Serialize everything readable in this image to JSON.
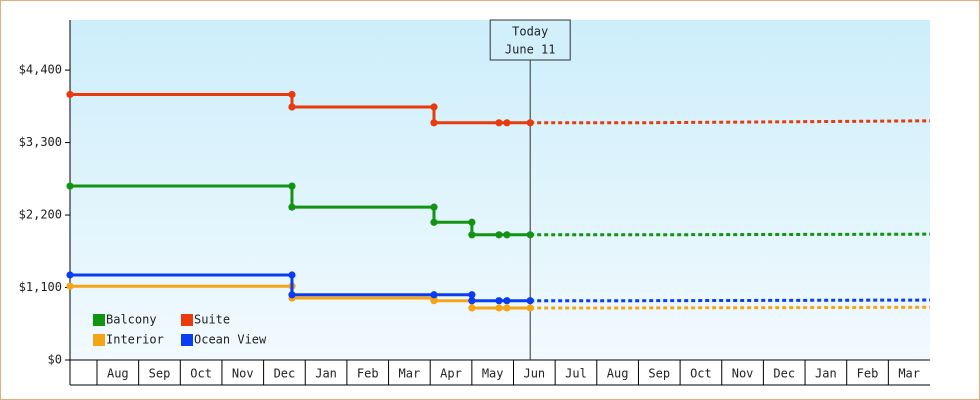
{
  "chart_data": {
    "type": "line",
    "step": true,
    "categories": [
      "Aug",
      "Sep",
      "Oct",
      "Nov",
      "Dec",
      "Jan",
      "Feb",
      "Mar",
      "Apr",
      "May",
      "Jun",
      "Jul",
      "Aug",
      "Sep",
      "Oct",
      "Nov",
      "Dec",
      "Jan",
      "Feb",
      "Mar"
    ],
    "xlim": [
      -0.65,
      20
    ],
    "ylim": [
      0,
      5160
    ],
    "yticks": [
      {
        "value": 0,
        "label": "$0"
      },
      {
        "value": 1100,
        "label": "$1,100"
      },
      {
        "value": 2200,
        "label": "$2,200"
      },
      {
        "value": 3300,
        "label": "$3,300"
      },
      {
        "value": 4400,
        "label": "$4,400"
      }
    ],
    "today_label": "Today",
    "today_date": "June 11",
    "today_x": 10.4,
    "series": [
      {
        "name": "Balcony",
        "color": "#129412",
        "x": [
          -0.65,
          4.68,
          4.68,
          8.09,
          8.09,
          9.0,
          9.0,
          9.65,
          9.84,
          10.4
        ],
        "values": [
          2640,
          2640,
          2320,
          2320,
          2090,
          2090,
          1900,
          1900,
          1900,
          1900
        ],
        "forecast_x": [
          10.4,
          13,
          20
        ],
        "forecast_values": [
          1900,
          1900,
          1910
        ]
      },
      {
        "name": "Suite",
        "color": "#e83a0a",
        "x": [
          -0.65,
          4.68,
          4.68,
          8.09,
          8.09,
          9.65,
          9.84,
          10.4
        ],
        "values": [
          4030,
          4030,
          3840,
          3840,
          3600,
          3600,
          3600,
          3600
        ],
        "forecast_x": [
          10.4,
          13,
          20
        ],
        "forecast_values": [
          3600,
          3600,
          3630
        ]
      },
      {
        "name": "Interior",
        "color": "#f5a414",
        "x": [
          -0.65,
          4.68,
          4.68,
          8.09,
          8.09,
          9.0,
          9.0,
          9.65,
          9.84,
          10.4
        ],
        "values": [
          1120,
          1120,
          940,
          940,
          900,
          900,
          790,
          790,
          790,
          790
        ],
        "forecast_x": [
          10.4,
          13,
          20
        ],
        "forecast_values": [
          790,
          790,
          800
        ]
      },
      {
        "name": "Ocean View",
        "color": "#0a3cf0",
        "x": [
          -0.65,
          4.68,
          4.68,
          8.09,
          9.0,
          9.0,
          9.65,
          9.84,
          10.4
        ],
        "values": [
          1290,
          1290,
          990,
          990,
          990,
          900,
          900,
          900,
          900
        ],
        "forecast_x": [
          10.4,
          13,
          20
        ],
        "forecast_values": [
          900,
          900,
          910
        ]
      }
    ]
  }
}
